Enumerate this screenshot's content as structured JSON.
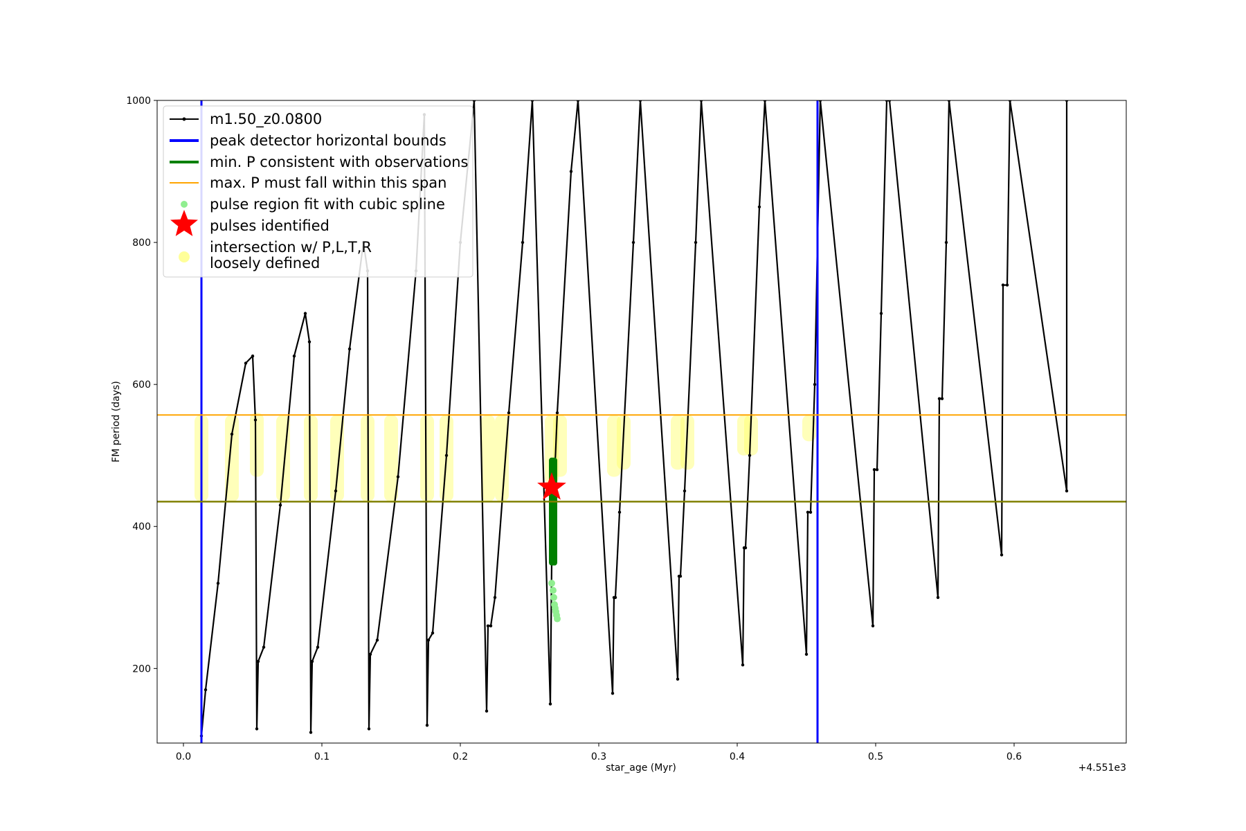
{
  "chart_data": {
    "type": "line",
    "xlabel": "star_age (Myr)",
    "ylabel": "FM period (days)",
    "x_offset_label": "+4.551e3",
    "xlim": [
      -0.019,
      0.681
    ],
    "ylim": [
      95,
      1000
    ],
    "x_ticks": [
      0.0,
      0.1,
      0.2,
      0.3,
      0.4,
      0.5,
      0.6
    ],
    "x_tick_labels": [
      "0.0",
      "0.1",
      "0.2",
      "0.3",
      "0.4",
      "0.5",
      "0.6"
    ],
    "y_ticks": [
      200,
      400,
      600,
      800,
      1000
    ],
    "y_tick_labels": [
      "200",
      "400",
      "600",
      "800",
      "1000"
    ],
    "grid": false,
    "legend_position": "upper-left",
    "series": [
      {
        "name": "m1.50_z0.0800",
        "color": "#000000",
        "x": [
          0.013,
          0.016,
          0.025,
          0.035,
          0.045,
          0.05,
          0.052,
          0.053,
          0.054,
          0.058,
          0.07,
          0.08,
          0.088,
          0.091,
          0.092,
          0.093,
          0.097,
          0.11,
          0.12,
          0.13,
          0.133,
          0.134,
          0.135,
          0.14,
          0.155,
          0.168,
          0.174,
          0.176,
          0.177,
          0.18,
          0.19,
          0.2,
          0.21,
          0.219,
          0.22,
          0.222,
          0.225,
          0.235,
          0.245,
          0.252,
          0.265,
          0.266,
          0.267,
          0.27,
          0.28,
          0.285,
          0.31,
          0.311,
          0.312,
          0.315,
          0.325,
          0.33,
          0.357,
          0.358,
          0.359,
          0.362,
          0.37,
          0.374,
          0.404,
          0.405,
          0.406,
          0.409,
          0.416,
          0.42,
          0.45,
          0.451,
          0.453,
          0.456,
          0.46,
          0.498,
          0.499,
          0.501,
          0.504,
          0.508,
          0.51,
          0.545,
          0.546,
          0.548,
          0.551,
          0.553,
          0.591,
          0.592,
          0.595,
          0.597,
          0.638,
          0.638
        ],
        "y": [
          105,
          170,
          320,
          530,
          630,
          640,
          550,
          115,
          210,
          230,
          430,
          640,
          700,
          660,
          110,
          210,
          230,
          450,
          650,
          800,
          760,
          115,
          220,
          240,
          470,
          760,
          980,
          120,
          240,
          250,
          500,
          800,
          1000,
          140,
          260,
          260,
          300,
          560,
          800,
          1000,
          150,
          350,
          420,
          560,
          900,
          1000,
          165,
          300,
          300,
          420,
          800,
          1000,
          185,
          330,
          330,
          450,
          800,
          1000,
          205,
          370,
          370,
          500,
          850,
          1000,
          220,
          420,
          420,
          600,
          1000,
          260,
          480,
          480,
          700,
          1000,
          1000,
          300,
          580,
          580,
          800,
          1000,
          360,
          740,
          740,
          1000,
          450,
          1000
        ]
      }
    ],
    "peak_bounds_x": [
      0.013,
      0.458
    ],
    "min_period_line_y": 435,
    "max_period_line_y": 557,
    "pulse_region_fit": {
      "x": [
        0.266,
        0.267,
        0.2675,
        0.268,
        0.2685,
        0.269,
        0.2695,
        0.27
      ],
      "y": [
        320,
        310,
        300,
        290,
        285,
        280,
        275,
        270
      ]
    },
    "pulses_identified": {
      "x": [
        0.266
      ],
      "y": [
        455
      ]
    },
    "intersections": [
      [
        0.013,
        435,
        557
      ],
      [
        0.035,
        435,
        557
      ],
      [
        0.053,
        470,
        560
      ],
      [
        0.072,
        435,
        557
      ],
      [
        0.092,
        435,
        557
      ],
      [
        0.111,
        435,
        557
      ],
      [
        0.133,
        435,
        557
      ],
      [
        0.15,
        435,
        557
      ],
      [
        0.176,
        435,
        557
      ],
      [
        0.19,
        435,
        557
      ],
      [
        0.22,
        435,
        557
      ],
      [
        0.23,
        435,
        557
      ],
      [
        0.266,
        460,
        557
      ],
      [
        0.272,
        470,
        557
      ],
      [
        0.311,
        470,
        557
      ],
      [
        0.318,
        480,
        557
      ],
      [
        0.357,
        480,
        557
      ],
      [
        0.364,
        480,
        557
      ],
      [
        0.405,
        500,
        557
      ],
      [
        0.41,
        500,
        557
      ],
      [
        0.452,
        520,
        557
      ]
    ],
    "min_period_series": {
      "x": [
        0.266,
        0.267,
        0.268
      ],
      "y_min": [
        345,
        345,
        345
      ],
      "y_max": [
        497,
        497,
        497
      ]
    },
    "legend": [
      {
        "label": "m1.50_z0.0800",
        "kind": "line-marker",
        "color": "#000000"
      },
      {
        "label": "peak detector horizontal bounds",
        "kind": "line",
        "color": "#0000ff"
      },
      {
        "label": "min. P consistent with observations",
        "kind": "line",
        "color": "#008000"
      },
      {
        "label": "max. P must fall within this span",
        "kind": "line",
        "color": "#ffa500"
      },
      {
        "label": "pulse region fit with cubic spline",
        "kind": "dot",
        "color": "#90ee90"
      },
      {
        "label": "pulses identified",
        "kind": "star",
        "color": "#ff0000"
      },
      {
        "label": "intersection w/ P,L,T,R",
        "kind": "none",
        "color": "#ffff99"
      },
      {
        "label": "loosely defined",
        "kind": "dot",
        "color": "#ffff99"
      }
    ]
  }
}
